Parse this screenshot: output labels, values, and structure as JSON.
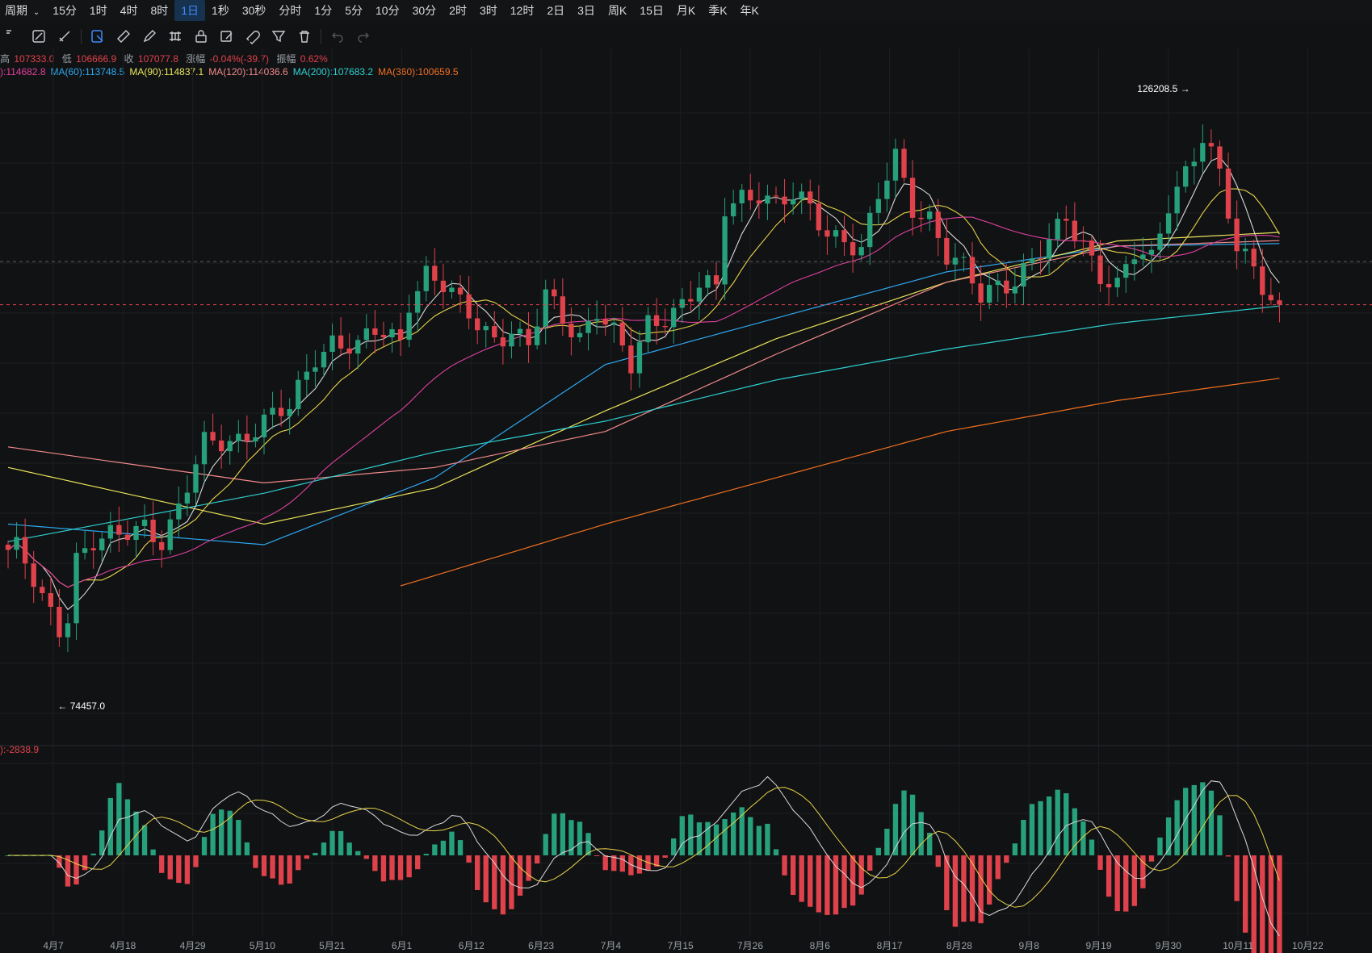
{
  "toolbar": {
    "period_label": "周期",
    "intervals": [
      "15分",
      "1时",
      "4时",
      "8时",
      "1日",
      "1秒",
      "30秒",
      "分时",
      "1分",
      "5分",
      "10分",
      "30分",
      "2时",
      "3时",
      "12时",
      "2日",
      "3日",
      "周K",
      "15日",
      "月K",
      "季K",
      "年K"
    ],
    "active_interval": "1日"
  },
  "drawing_tools": [
    "crosshair-icon",
    "line-icon",
    "brush-icon",
    "select-icon",
    "ruler-icon",
    "pen-icon",
    "pattern-icon",
    "lock-icon",
    "edit-icon",
    "magnet-icon",
    "filter-icon",
    "trash-icon",
    "undo-icon",
    "redo-icon"
  ],
  "ohlc": {
    "high_label": "高",
    "high": "107333.0",
    "low_label": "低",
    "low": "106666.9",
    "close_label": "收",
    "close": "107077.8",
    "change_label": "涨幅",
    "change": "-0.04%(-39.7)",
    "amplitude_label": "振幅",
    "amplitude": "0.62%"
  },
  "ma_legend": [
    {
      "label": "):114682.8",
      "color": "#e040a0"
    },
    {
      "label": "MA(60):113748.5",
      "color": "#2da8f0"
    },
    {
      "label": "MA(90):114837.1",
      "color": "#e8e35a"
    },
    {
      "label": "MA(120):114036.6",
      "color": "#f08a8a"
    },
    {
      "label": "MA(200):107683.2",
      "color": "#2ed0d0"
    },
    {
      "label": "MA(360):100659.5",
      "color": "#f07020"
    }
  ],
  "macd_legend": "):-2838.9",
  "colors": {
    "up": "#26a17b",
    "down": "#e0424b",
    "ma_fast": "#d9d9d9",
    "ma_slow": "#e8d24a"
  },
  "chart_data": {
    "type": "candlestick",
    "title": "",
    "high_marker": "126208.5",
    "low_marker": "74457.0",
    "x_tick_labels": [
      "4月7",
      "4月18",
      "4月29",
      "5月10",
      "5月21",
      "6月1",
      "6月12",
      "6月23",
      "7月4",
      "7月15",
      "7月26",
      "8月6",
      "8月17",
      "8月28",
      "9月8",
      "9月19",
      "9月30",
      "10月11",
      "10月22"
    ],
    "ylim": [
      70000,
      128000
    ],
    "price_series": [
      [
        1,
        84000
      ],
      [
        4,
        79000
      ],
      [
        6,
        76500
      ],
      [
        7,
        78000
      ],
      [
        8,
        83500
      ],
      [
        10,
        84800
      ],
      [
        13,
        85000
      ],
      [
        16,
        86500
      ],
      [
        18,
        85200
      ],
      [
        20,
        88000
      ],
      [
        23,
        94000
      ],
      [
        27,
        95000
      ],
      [
        30,
        96500
      ],
      [
        33,
        97500
      ],
      [
        36,
        103000
      ],
      [
        38,
        104500
      ],
      [
        41,
        103500
      ],
      [
        43,
        105000
      ],
      [
        46,
        104500
      ],
      [
        47,
        108500
      ],
      [
        49,
        111000
      ],
      [
        51,
        109500
      ],
      [
        53,
        107500
      ],
      [
        55,
        106000
      ],
      [
        57,
        104800
      ],
      [
        59,
        105500
      ],
      [
        61,
        103500
      ],
      [
        63,
        108500
      ],
      [
        65,
        106500
      ],
      [
        67,
        105000
      ],
      [
        69,
        107500
      ],
      [
        71,
        104800
      ],
      [
        73,
        101500
      ],
      [
        75,
        106000
      ],
      [
        77,
        107000
      ],
      [
        79,
        108000
      ],
      [
        81,
        109500
      ],
      [
        83,
        109000
      ],
      [
        84,
        117000
      ],
      [
        86,
        118500
      ],
      [
        88,
        119000
      ],
      [
        90,
        117500
      ],
      [
        92,
        118000
      ],
      [
        94,
        117000
      ],
      [
        96,
        115000
      ],
      [
        98,
        114500
      ],
      [
        100,
        113000
      ],
      [
        102,
        118000
      ],
      [
        104,
        122000
      ],
      [
        106,
        117500
      ],
      [
        108,
        116500
      ],
      [
        110,
        112500
      ],
      [
        112,
        111000
      ],
      [
        114,
        108500
      ],
      [
        116,
        110000
      ],
      [
        118,
        110500
      ],
      [
        120,
        112000
      ],
      [
        122,
        113500
      ],
      [
        124,
        116000
      ],
      [
        126,
        114000
      ],
      [
        128,
        111000
      ],
      [
        130,
        109500
      ],
      [
        132,
        112500
      ],
      [
        134,
        112000
      ],
      [
        136,
        118000
      ],
      [
        138,
        121000
      ],
      [
        140,
        124000
      ],
      [
        141,
        122000
      ],
      [
        142,
        120000
      ],
      [
        144,
        113000
      ],
      [
        146,
        112000
      ],
      [
        148,
        108500
      ],
      [
        149,
        107200
      ]
    ],
    "ma_series": [
      {
        "name": "MA(60)",
        "values": [
          [
            0,
            86500
          ],
          [
            30,
            84500
          ],
          [
            50,
            91000
          ],
          [
            70,
            102000
          ],
          [
            90,
            106500
          ],
          [
            110,
            111000
          ],
          [
            130,
            113500
          ],
          [
            149,
            113748.5
          ]
        ]
      },
      {
        "name": "MA(90)",
        "values": [
          [
            0,
            92000
          ],
          [
            30,
            86500
          ],
          [
            50,
            90000
          ],
          [
            70,
            97500
          ],
          [
            90,
            104500
          ],
          [
            110,
            110000
          ],
          [
            130,
            114000
          ],
          [
            149,
            114837.1
          ]
        ]
      },
      {
        "name": "MA(120)",
        "values": [
          [
            0,
            94000
          ],
          [
            30,
            90500
          ],
          [
            50,
            92000
          ],
          [
            70,
            95500
          ],
          [
            90,
            103000
          ],
          [
            110,
            110000
          ],
          [
            130,
            113500
          ],
          [
            149,
            114036.6
          ]
        ]
      },
      {
        "name": "MA(200)",
        "values": [
          [
            0,
            84800
          ],
          [
            30,
            89500
          ],
          [
            50,
            93500
          ],
          [
            70,
            96500
          ],
          [
            90,
            100500
          ],
          [
            110,
            103500
          ],
          [
            130,
            106000
          ],
          [
            149,
            107683.2
          ]
        ]
      },
      {
        "name": "MA(360)",
        "values": [
          [
            46,
            80500
          ],
          [
            70,
            86500
          ],
          [
            90,
            91000
          ],
          [
            110,
            95500
          ],
          [
            130,
            98500
          ],
          [
            149,
            100659.5
          ]
        ]
      }
    ]
  }
}
